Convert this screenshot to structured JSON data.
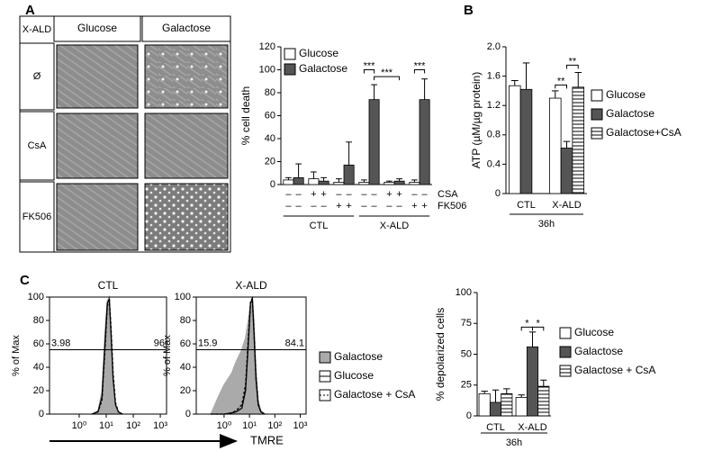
{
  "panel_labels": [
    "A",
    "B",
    "C"
  ],
  "images": {
    "corner": "X-ALD",
    "columns": [
      "Glucose",
      "Galactose"
    ],
    "rows": [
      "Ø",
      "CsA",
      "FK506"
    ]
  },
  "flow_axis_label": "TMRE",
  "chart_data": [
    {
      "type": "bar",
      "y_label": "% cell death",
      "ylim": [
        0,
        120
      ],
      "yticks": [
        0,
        20,
        40,
        60,
        80,
        100,
        120
      ],
      "series": [
        {
          "name": "Glucose",
          "color": "#ffffff",
          "values": [
            4,
            5,
            2,
            2,
            2,
            2
          ],
          "errors": [
            2,
            6,
            3,
            2,
            1,
            2
          ]
        },
        {
          "name": "Galactose",
          "color": "#555555",
          "values": [
            6,
            3,
            17,
            74,
            3,
            74
          ],
          "errors": [
            12,
            3,
            20,
            13,
            2,
            18
          ]
        }
      ],
      "group_labels": [
        "CTL",
        "X-ALD"
      ],
      "treatments": [
        {
          "name": "CSA",
          "signs": [
            "–",
            "–",
            "+",
            "+",
            "–",
            "–",
            "–",
            "–",
            "+",
            "+",
            "–",
            "–"
          ]
        },
        {
          "name": "FK506",
          "signs": [
            "–",
            "–",
            "–",
            "–",
            "+",
            "+",
            "–",
            "–",
            "–",
            "–",
            "+",
            "+"
          ]
        }
      ],
      "significance": [
        "***",
        "***",
        "***"
      ]
    },
    {
      "type": "bar",
      "y_label": "ATP (µM/µg protein)",
      "ylim": [
        0,
        2
      ],
      "yticks": [
        0,
        0.4,
        0.8,
        1.2,
        1.6,
        {
          "value": 2,
          "label": "2.0"
        }
      ],
      "categories": [
        "CTL",
        "X-ALD"
      ],
      "x_label": "36h",
      "series": [
        {
          "name": "Glucose",
          "color": "#ffffff",
          "values": [
            1.47,
            1.3
          ],
          "errors": [
            0.07,
            0.1
          ]
        },
        {
          "name": "Galactose",
          "color": "#555555",
          "values": [
            1.42,
            0.62
          ],
          "errors": [
            0.36,
            0.09
          ]
        },
        {
          "name": "Galactose+CsA",
          "color": "#ffffff",
          "hatch": true,
          "values": [
            null,
            1.45
          ],
          "errors": [
            null,
            0.2
          ]
        }
      ],
      "significance": [
        "**",
        "**"
      ]
    },
    {
      "type": "line",
      "title": "CTL",
      "y_label": "% of Max",
      "x_log": true,
      "xlim": [
        0.08,
        1700
      ],
      "xticks": [
        {
          "value": 1,
          "label": "10⁰"
        },
        {
          "value": 10,
          "label": "10¹"
        },
        {
          "value": 100,
          "label": "10²"
        },
        {
          "value": 1000,
          "label": "10³"
        }
      ],
      "ylim": [
        0,
        100
      ],
      "yticks": [
        0,
        20,
        40,
        60,
        80,
        100
      ],
      "x": [
        3,
        5,
        7,
        9,
        11,
        13,
        15,
        18,
        22,
        28,
        40
      ],
      "series": [
        {
          "color": "#aaaaaa",
          "area": true,
          "values": [
            0,
            3,
            20,
            70,
            97,
            100,
            65,
            25,
            6,
            1,
            0
          ]
        },
        {
          "color": "#000000",
          "values": [
            0,
            2,
            15,
            60,
            95,
            98,
            70,
            30,
            8,
            2,
            0
          ]
        },
        {
          "color": "#000000",
          "dash": true,
          "values": [
            0,
            2,
            12,
            55,
            92,
            99,
            75,
            35,
            10,
            2,
            0
          ]
        }
      ],
      "gate_y": 55,
      "gate_labels": [
        "3.98",
        "96"
      ]
    },
    {
      "type": "line",
      "title": "X-ALD",
      "y_label": "% of Max",
      "x_log": true,
      "xlim": [
        0.08,
        1700
      ],
      "xticks": [
        {
          "value": 1,
          "label": "10⁰"
        },
        {
          "value": 10,
          "label": "10¹"
        },
        {
          "value": 100,
          "label": "10²"
        },
        {
          "value": 1000,
          "label": "10³"
        }
      ],
      "ylim": [
        0,
        100
      ],
      "yticks": [
        0,
        20,
        40,
        60,
        80,
        100
      ],
      "x": [
        0.3,
        0.6,
        1,
        2,
        3,
        5,
        7,
        9,
        11,
        13,
        15,
        18,
        22,
        28,
        40
      ],
      "series": [
        {
          "name": "Galactose",
          "color": "#aaaaaa",
          "area": true,
          "values": [
            0,
            15,
            25,
            35,
            45,
            55,
            65,
            80,
            95,
            100,
            80,
            40,
            12,
            3,
            0
          ]
        },
        {
          "name": "Glucose",
          "color": "#000000",
          "values": [
            0,
            0,
            0,
            1,
            2,
            5,
            20,
            60,
            95,
            98,
            70,
            30,
            8,
            2,
            0
          ]
        },
        {
          "name": "Galactose + CsA",
          "color": "#000000",
          "dash": true,
          "values": [
            0,
            0,
            0,
            1,
            3,
            8,
            25,
            65,
            96,
            99,
            72,
            32,
            9,
            2,
            0
          ]
        }
      ],
      "gate_y": 55,
      "gate_labels": [
        "15.9",
        "84.1"
      ]
    },
    {
      "type": "bar",
      "y_label": "% depolarized cells",
      "ylim": [
        0,
        100
      ],
      "yticks": [
        0,
        25,
        50,
        75,
        100
      ],
      "categories": [
        "CTL",
        "X-ALD"
      ],
      "x_label": "36h",
      "series": [
        {
          "name": "Glucose",
          "color": "#ffffff",
          "values": [
            18,
            15
          ],
          "errors": [
            2,
            2
          ]
        },
        {
          "name": "Galactose",
          "color": "#555555",
          "values": [
            11,
            56
          ],
          "errors": [
            10,
            12
          ]
        },
        {
          "name": "Galactose + CsA",
          "color": "#ffffff",
          "hatch": true,
          "values": [
            18,
            24
          ],
          "errors": [
            4,
            5
          ]
        }
      ],
      "significance": [
        "*",
        "*"
      ]
    }
  ]
}
